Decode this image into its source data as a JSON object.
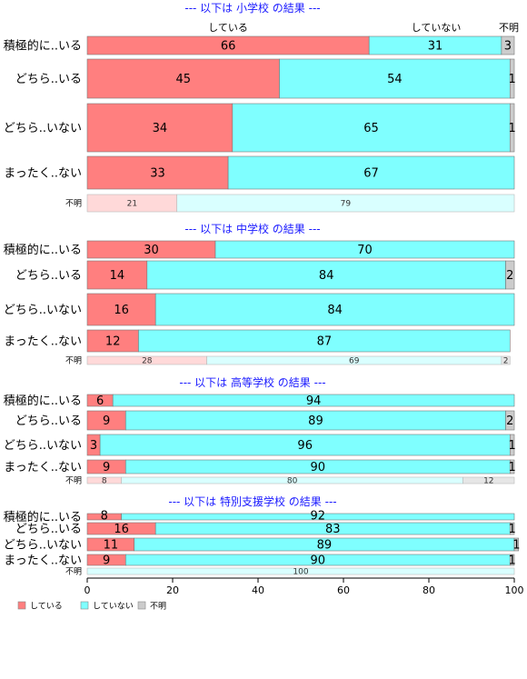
{
  "chart_data": {
    "type": "bar",
    "orientation": "horizontal",
    "stacked": "percent",
    "column_labels": [
      "している",
      "していない",
      "不明"
    ],
    "colors": {
      "している": "#ff7f7f",
      "していない": "#7fffff",
      "不明": "#cccccc"
    },
    "legend": {
      "position": "bottom-left",
      "items": [
        {
          "name": "している",
          "color": "#ff7f7f"
        },
        {
          "name": "していない",
          "color": "#7fffff"
        },
        {
          "name": "不明",
          "color": "#cccccc"
        }
      ]
    },
    "x_axis": {
      "ticks": [
        0,
        20,
        40,
        60,
        80,
        100
      ],
      "xlim": [
        0,
        100
      ]
    },
    "grid": false,
    "panels": [
      {
        "title": "--- 以下は 小学校 の結果 ---",
        "rows": [
          {
            "label": "積極的に..いる",
            "values": [
              66,
              31,
              3
            ]
          },
          {
            "label": "どちら..いる",
            "values": [
              45,
              54,
              1
            ]
          },
          {
            "label": "どちら..いない",
            "values": [
              34,
              65,
              1
            ]
          },
          {
            "label": "まったく..ない",
            "values": [
              33,
              67,
              0
            ]
          },
          {
            "label": "不明",
            "values": [
              21,
              79,
              0
            ],
            "minor": true
          }
        ]
      },
      {
        "title": "--- 以下は 中学校 の結果 ---",
        "rows": [
          {
            "label": "積極的に..いる",
            "values": [
              30,
              70,
              0
            ]
          },
          {
            "label": "どちら..いる",
            "values": [
              14,
              84,
              2
            ]
          },
          {
            "label": "どちら..いない",
            "values": [
              16,
              84,
              0
            ]
          },
          {
            "label": "まったく..ない",
            "values": [
              12,
              87,
              0
            ]
          },
          {
            "label": "不明",
            "values": [
              28,
              69,
              2
            ],
            "minor": true
          }
        ]
      },
      {
        "title": "--- 以下は 高等学校 の結果 ---",
        "rows": [
          {
            "label": "積極的に..いる",
            "values": [
              6,
              94,
              0
            ]
          },
          {
            "label": "どちら..いる",
            "values": [
              9,
              89,
              2
            ]
          },
          {
            "label": "どちら..いない",
            "values": [
              3,
              96,
              1
            ]
          },
          {
            "label": "まったく..ない",
            "values": [
              9,
              90,
              1
            ]
          },
          {
            "label": "不明",
            "values": [
              8,
              80,
              12
            ],
            "minor": true
          }
        ]
      },
      {
        "title": "--- 以下は 特別支援学校 の結果 ---",
        "rows": [
          {
            "label": "積極的に..いる",
            "values": [
              8,
              92,
              0
            ]
          },
          {
            "label": "どちら..いる",
            "values": [
              16,
              83,
              1
            ]
          },
          {
            "label": "どちら..いない",
            "values": [
              11,
              89,
              1
            ]
          },
          {
            "label": "まったく..ない",
            "values": [
              9,
              90,
              1
            ]
          },
          {
            "label": "不明",
            "values": [
              0,
              100,
              0
            ],
            "minor": true
          }
        ]
      }
    ]
  }
}
